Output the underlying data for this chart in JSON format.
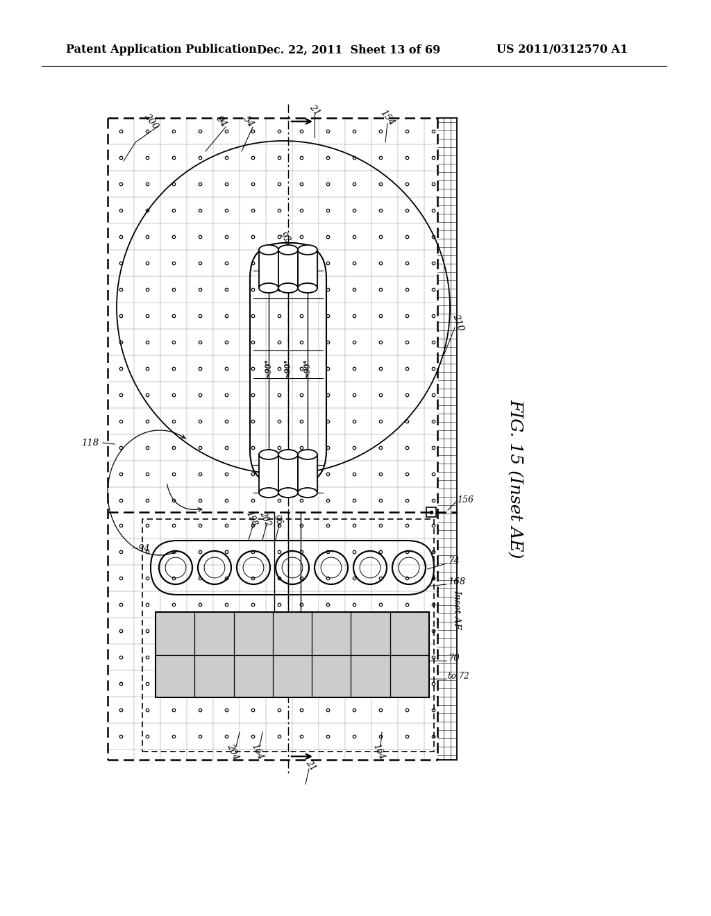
{
  "bg_color": "#ffffff",
  "header_left": "Patent Application Publication",
  "header_mid": "Dec. 22, 2011  Sheet 13 of 69",
  "header_right": "US 2011/0312570 A1",
  "fig_label": "FIG. 15 (Inset AE)"
}
